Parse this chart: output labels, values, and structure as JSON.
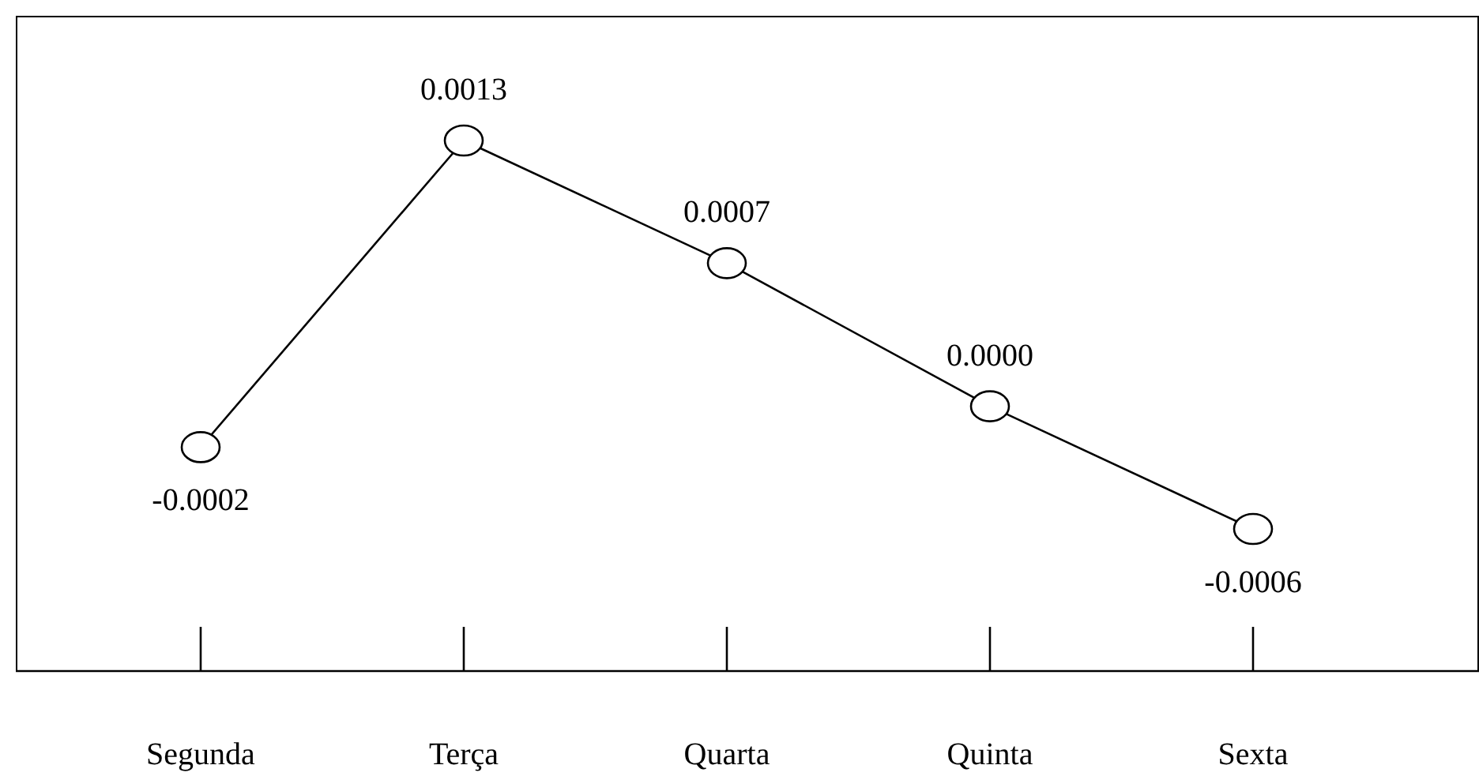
{
  "chart_data": {
    "type": "line",
    "categories": [
      "Segunda",
      "Terça",
      "Quarta",
      "Quinta",
      "Sexta"
    ],
    "values": [
      -0.0002,
      0.0013,
      0.0007,
      0.0,
      -0.0006
    ],
    "value_labels": [
      "-0.0002",
      "0.0013",
      "0.0007",
      "0.0000",
      "-0.0006"
    ],
    "color": "#000000",
    "marker": "circle",
    "line_style": "solid"
  }
}
